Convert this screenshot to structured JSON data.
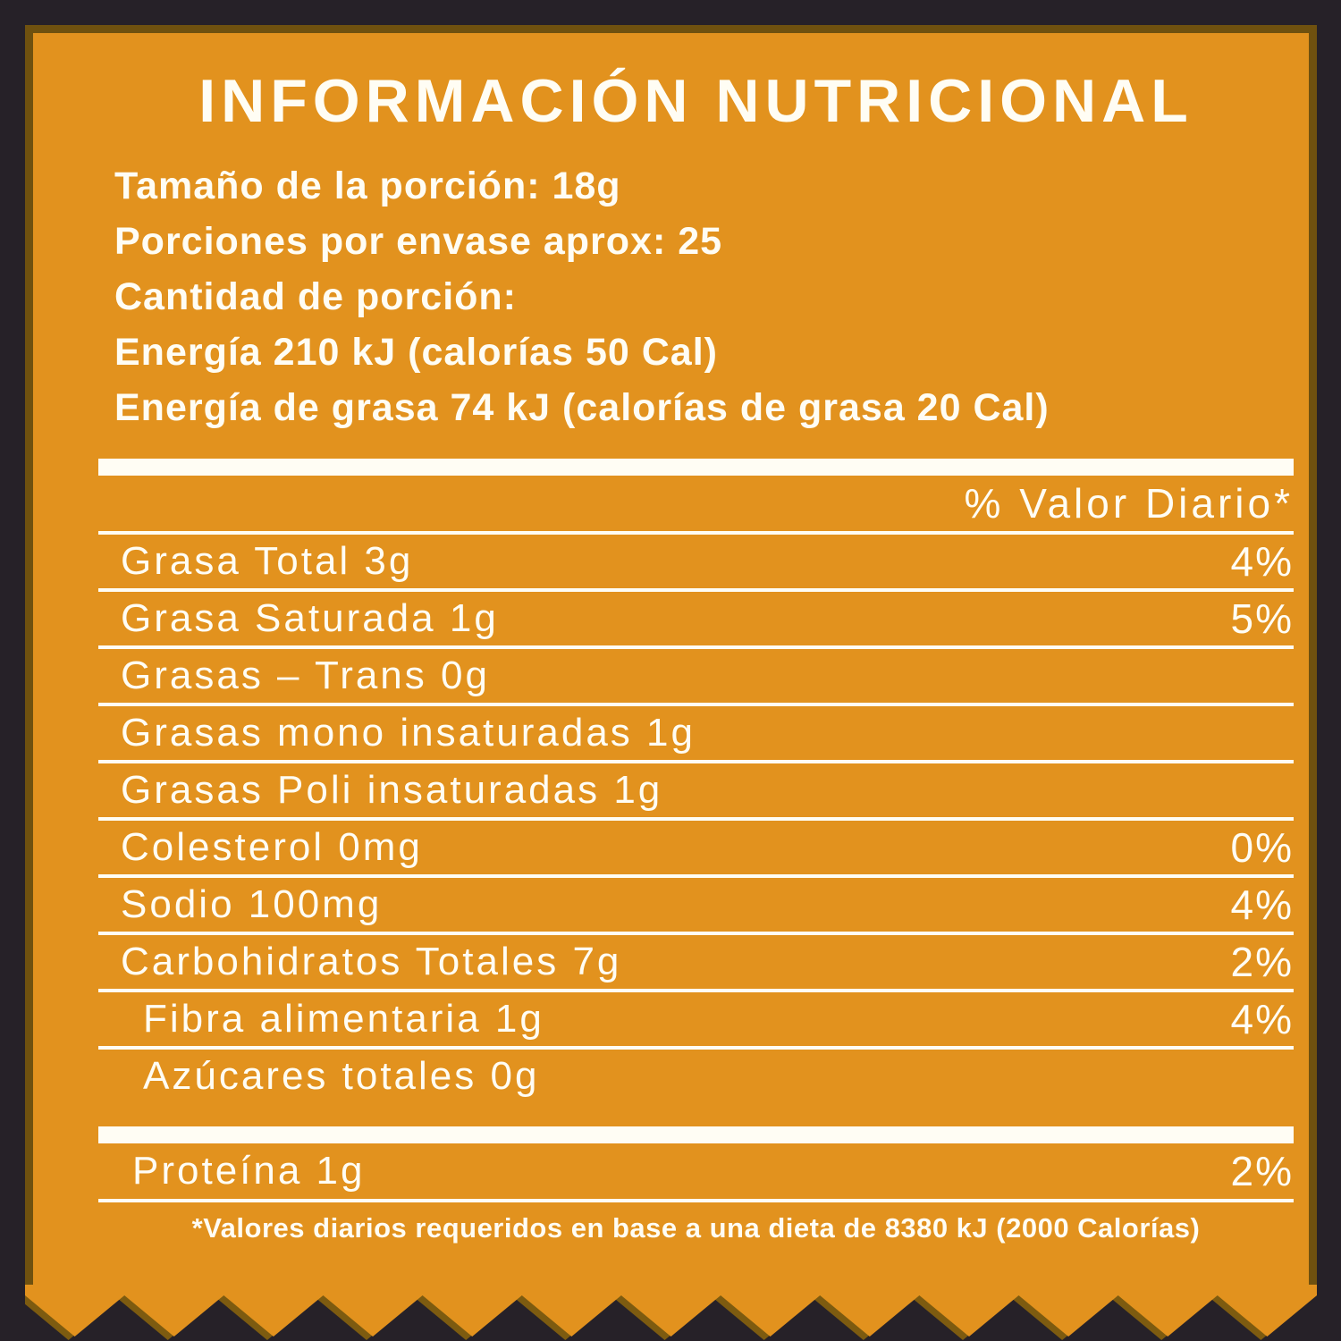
{
  "label": {
    "title": "INFORMACIÓN NUTRICIONAL",
    "serving_lines": [
      "Tamaño de la porción: 18g",
      "Porciones por envase aprox: 25",
      "Cantidad de porción:",
      "Energía 210 kJ (calorías 50 Cal)",
      "Energía de grasa 74 kJ (calorías de grasa 20 Cal)"
    ],
    "table": {
      "header": "% Valor Diario*",
      "rows": [
        {
          "name": "Grasa Total 3g",
          "dv": "4%",
          "indent": false,
          "no_rule": false
        },
        {
          "name": "Grasa Saturada 1g",
          "dv": "5%",
          "indent": false,
          "no_rule": false
        },
        {
          "name": "Grasas – Trans 0g",
          "dv": "",
          "indent": false,
          "no_rule": false
        },
        {
          "name": "Grasas mono insaturadas 1g",
          "dv": "",
          "indent": false,
          "no_rule": false
        },
        {
          "name": "Grasas Poli insaturadas 1g",
          "dv": "",
          "indent": false,
          "no_rule": false
        },
        {
          "name": "Colesterol 0mg",
          "dv": "0%",
          "indent": false,
          "no_rule": false
        },
        {
          "name": "Sodio 100mg",
          "dv": "4%",
          "indent": false,
          "no_rule": false
        },
        {
          "name": "Carbohidratos Totales 7g",
          "dv": "2%",
          "indent": false,
          "no_rule": false
        },
        {
          "name": "Fibra alimentaria 1g",
          "dv": "4%",
          "indent": true,
          "no_rule": false
        },
        {
          "name": "Azúcares totales 0g",
          "dv": "",
          "indent": true,
          "no_rule": true
        }
      ],
      "protein": {
        "name": "Proteína 1g",
        "dv": "2%"
      }
    },
    "footnote": "*Valores diarios requeridos en base a una dieta de 8380 kJ (2000 Calorías)",
    "colors": {
      "label_orange": "#E2921E",
      "background_dark": "#262128",
      "text_white": "#FFFDF4",
      "edge_brown": "#6F510F",
      "zigzag_shadow": "#7D5B10"
    }
  }
}
